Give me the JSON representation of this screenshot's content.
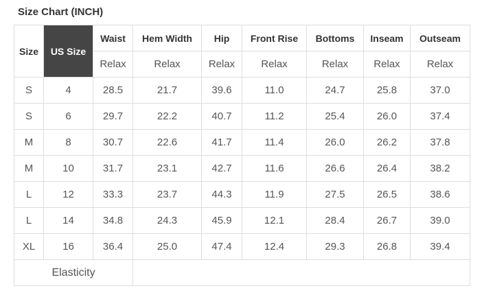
{
  "title": "Size Chart (INCH)",
  "colors": {
    "us_size_header_bg": "#454545",
    "us_size_header_text": "#ffffff",
    "border": "#dddddd",
    "header_text": "#333333",
    "cell_text": "#555555"
  },
  "table": {
    "size_header": "Size",
    "us_size_header": "US Size",
    "columns": [
      {
        "label": "Waist",
        "sub": "Relax"
      },
      {
        "label": "Hem Width",
        "sub": "Relax"
      },
      {
        "label": "Hip",
        "sub": "Relax"
      },
      {
        "label": "Front Rise",
        "sub": "Relax"
      },
      {
        "label": "Bottoms",
        "sub": "Relax"
      },
      {
        "label": "Inseam",
        "sub": "Relax"
      },
      {
        "label": "Outseam",
        "sub": "Relax"
      }
    ],
    "rows": [
      {
        "size": "S",
        "us_size": "4",
        "values": [
          "28.5",
          "21.7",
          "39.6",
          "11.0",
          "24.7",
          "25.8",
          "37.0"
        ]
      },
      {
        "size": "S",
        "us_size": "6",
        "values": [
          "29.7",
          "22.2",
          "40.7",
          "11.2",
          "25.4",
          "26.0",
          "37.4"
        ]
      },
      {
        "size": "M",
        "us_size": "8",
        "values": [
          "30.7",
          "22.6",
          "41.7",
          "11.4",
          "26.0",
          "26.2",
          "37.8"
        ]
      },
      {
        "size": "M",
        "us_size": "10",
        "values": [
          "31.7",
          "23.1",
          "42.7",
          "11.6",
          "26.6",
          "26.4",
          "38.2"
        ]
      },
      {
        "size": "L",
        "us_size": "12",
        "values": [
          "33.3",
          "23.7",
          "44.3",
          "11.9",
          "27.5",
          "26.5",
          "38.6"
        ]
      },
      {
        "size": "L",
        "us_size": "14",
        "values": [
          "34.8",
          "24.3",
          "45.9",
          "12.1",
          "28.4",
          "26.7",
          "39.0"
        ]
      },
      {
        "size": "XL",
        "us_size": "16",
        "values": [
          "36.4",
          "25.0",
          "47.4",
          "12.4",
          "29.3",
          "26.8",
          "39.4"
        ]
      }
    ],
    "footer": {
      "label": "Elasticity",
      "value": ""
    }
  }
}
